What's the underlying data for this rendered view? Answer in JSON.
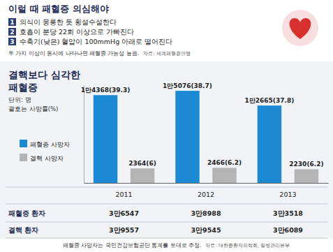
{
  "header": {
    "title": "이럴 때 패혈증 의심해야",
    "items": [
      {
        "number": 1,
        "text": "의식이 몽롱한 듯 횡설수설한다"
      },
      {
        "number": 2,
        "text": "호흡이 분당 22회 이상으로 가빠진다"
      },
      {
        "number": 3,
        "text": "수축기(낮은) 혈압이 100mmHg 아래로 떨어진다"
      }
    ],
    "note": "두 가지 이상이 동시에 나타나면 패혈증 가능성 높음.",
    "source": "자료: 세계패혈증연맹"
  },
  "chart_data": {
    "type": "bar",
    "title": "결핵보다 심각한 패혈증",
    "subtitle": "단위: 명",
    "annotations": [
      "괄호는 사망률(%)"
    ],
    "categories": [
      "2011",
      "2012",
      "2013"
    ],
    "series": [
      {
        "name": "패혈증 사망자",
        "color": "#1b8ad3",
        "values": [
          14368,
          15076,
          12665
        ],
        "value_labels": [
          "1만4368(39.3)",
          "1만5076(38.7)",
          "1만2665(37.8)"
        ]
      },
      {
        "name": "결핵 사망자",
        "color": "#b4b4b4",
        "values": [
          2364,
          2466,
          2230
        ],
        "value_labels": [
          "2364(6)",
          "2466(6.2)",
          "2230(6.2)"
        ]
      }
    ],
    "ylim": [
      0,
      16000
    ],
    "yticks": [],
    "grid": false,
    "legend": "left",
    "data_labels": true,
    "tick_labels": "x"
  },
  "table": {
    "rows": [
      {
        "label": "패혈증 환자",
        "values": [
          "3만6547",
          "3만8988",
          "3만3518"
        ]
      },
      {
        "label": "결핵 환자",
        "values": [
          "3만9557",
          "3만9545",
          "3만6089"
        ]
      }
    ]
  },
  "footer": {
    "note": "패혈증 사망자는 국민건강보험공단 통계를 토대로 추정.",
    "source": "자료: 대한중환자의학회, 질병관리본부"
  }
}
